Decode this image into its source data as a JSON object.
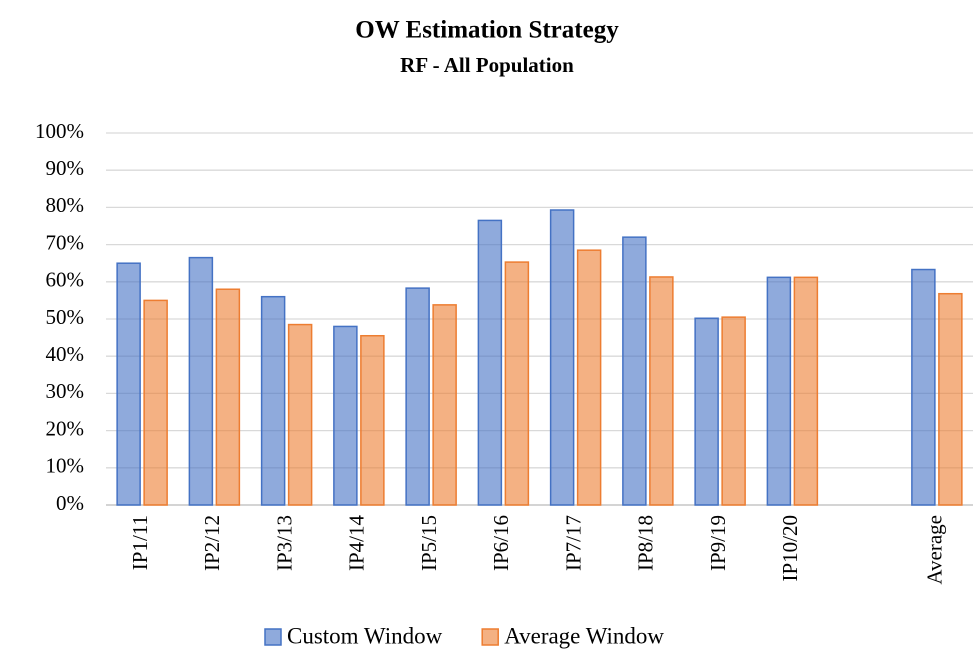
{
  "chart_data": {
    "type": "bar",
    "title": "OW Estimation Strategy",
    "subtitle": "RF - All Population",
    "categories": [
      "IP1/11",
      "IP2/12",
      "IP3/13",
      "IP4/14",
      "IP5/15",
      "IP6/16",
      "IP7/17",
      "IP8/18",
      "IP9/19",
      "IP10/20",
      null,
      "Average"
    ],
    "series": [
      {
        "name": "Custom Window",
        "color": "#4472c4",
        "values": [
          65,
          66.5,
          56,
          48,
          58.3,
          76.5,
          79.3,
          72,
          50.2,
          61.2,
          null,
          63.3
        ]
      },
      {
        "name": "Average Window",
        "color": "#ed7d31",
        "values": [
          55,
          58,
          48.5,
          45.5,
          53.8,
          65.3,
          68.5,
          61.3,
          50.5,
          61.2,
          null,
          56.8
        ]
      }
    ],
    "ylim": [
      0,
      100
    ],
    "yticks": [
      {
        "value": 0,
        "label": "0%"
      },
      {
        "value": 10,
        "label": "10%"
      },
      {
        "value": 20,
        "label": "20%"
      },
      {
        "value": 30,
        "label": "30%"
      },
      {
        "value": 40,
        "label": "40%"
      },
      {
        "value": 50,
        "label": "50%"
      },
      {
        "value": 60,
        "label": "60%"
      },
      {
        "value": 70,
        "label": "70%"
      },
      {
        "value": 80,
        "label": "80%"
      },
      {
        "value": 90,
        "label": "90%"
      },
      {
        "value": 100,
        "label": "100%"
      }
    ],
    "grid": true,
    "legend": "bottom"
  }
}
